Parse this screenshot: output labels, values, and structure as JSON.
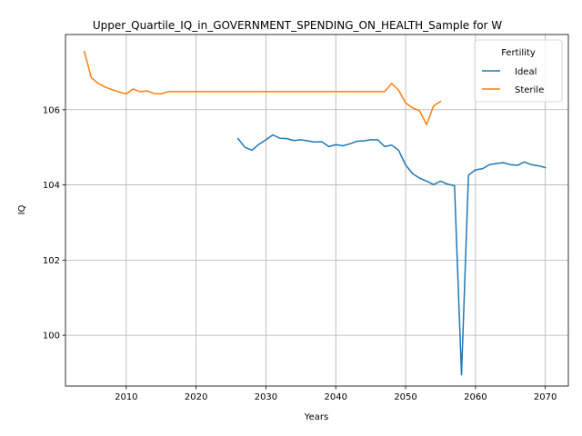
{
  "chart_data": {
    "type": "line",
    "title": "Upper_Quartile_IQ_in_GOVERNMENT_SPENDING_ON_HEALTH_Sample for W",
    "xlabel": "Years",
    "ylabel": "IQ",
    "xlim": [
      2001.3,
      2073.3
    ],
    "ylim": [
      98.65,
      108.0
    ],
    "xticks": [
      2010,
      2020,
      2030,
      2040,
      2050,
      2060,
      2070
    ],
    "yticks": [
      100,
      102,
      104,
      106
    ],
    "grid": true,
    "legend": {
      "title": "Fertility",
      "placement": "top-right"
    },
    "series": [
      {
        "name": "Ideal",
        "color": "#1f77b4",
        "x": [
          2026,
          2027,
          2028,
          2029,
          2030,
          2031,
          2032,
          2033,
          2034,
          2035,
          2036,
          2037,
          2038,
          2039,
          2040,
          2041,
          2042,
          2043,
          2044,
          2045,
          2046,
          2047,
          2048,
          2049,
          2050,
          2051,
          2052,
          2053,
          2054,
          2055,
          2056,
          2057,
          2058,
          2059,
          2060,
          2061,
          2062,
          2063,
          2064,
          2065,
          2066,
          2067,
          2068,
          2069,
          2070
        ],
        "y": [
          105.23,
          105.0,
          104.92,
          105.08,
          105.2,
          105.33,
          105.24,
          105.23,
          105.18,
          105.2,
          105.17,
          105.14,
          105.15,
          105.02,
          105.07,
          105.04,
          105.09,
          105.16,
          105.17,
          105.2,
          105.2,
          105.02,
          105.06,
          104.92,
          104.53,
          104.3,
          104.18,
          104.1,
          104.01,
          104.1,
          104.02,
          103.98,
          98.95,
          104.26,
          104.4,
          104.43,
          104.54,
          104.57,
          104.59,
          104.54,
          104.52,
          104.61,
          104.54,
          104.51,
          104.46
        ]
      },
      {
        "name": "Sterile",
        "color": "#ff7f0e",
        "x": [
          2004,
          2005,
          2006,
          2007,
          2008,
          2009,
          2010,
          2011,
          2012,
          2013,
          2014,
          2015,
          2016,
          2017,
          2018,
          2019,
          2020,
          2021,
          2022,
          2023,
          2024,
          2025,
          2026,
          2027,
          2028,
          2029,
          2030,
          2031,
          2032,
          2033,
          2034,
          2035,
          2036,
          2037,
          2038,
          2039,
          2040,
          2041,
          2042,
          2043,
          2044,
          2045,
          2046,
          2047,
          2048,
          2049,
          2050,
          2051,
          2052,
          2053,
          2054,
          2055
        ],
        "y": [
          107.55,
          106.85,
          106.7,
          106.6,
          106.53,
          106.47,
          106.42,
          106.55,
          106.48,
          106.5,
          106.43,
          106.42,
          106.48,
          106.48,
          106.48,
          106.48,
          106.48,
          106.48,
          106.48,
          106.48,
          106.48,
          106.48,
          106.48,
          106.48,
          106.48,
          106.48,
          106.48,
          106.48,
          106.48,
          106.48,
          106.48,
          106.48,
          106.48,
          106.48,
          106.48,
          106.48,
          106.48,
          106.48,
          106.48,
          106.48,
          106.48,
          106.48,
          106.48,
          106.48,
          106.7,
          106.52,
          106.18,
          106.05,
          105.97,
          105.6,
          106.1,
          106.22
        ]
      }
    ]
  }
}
